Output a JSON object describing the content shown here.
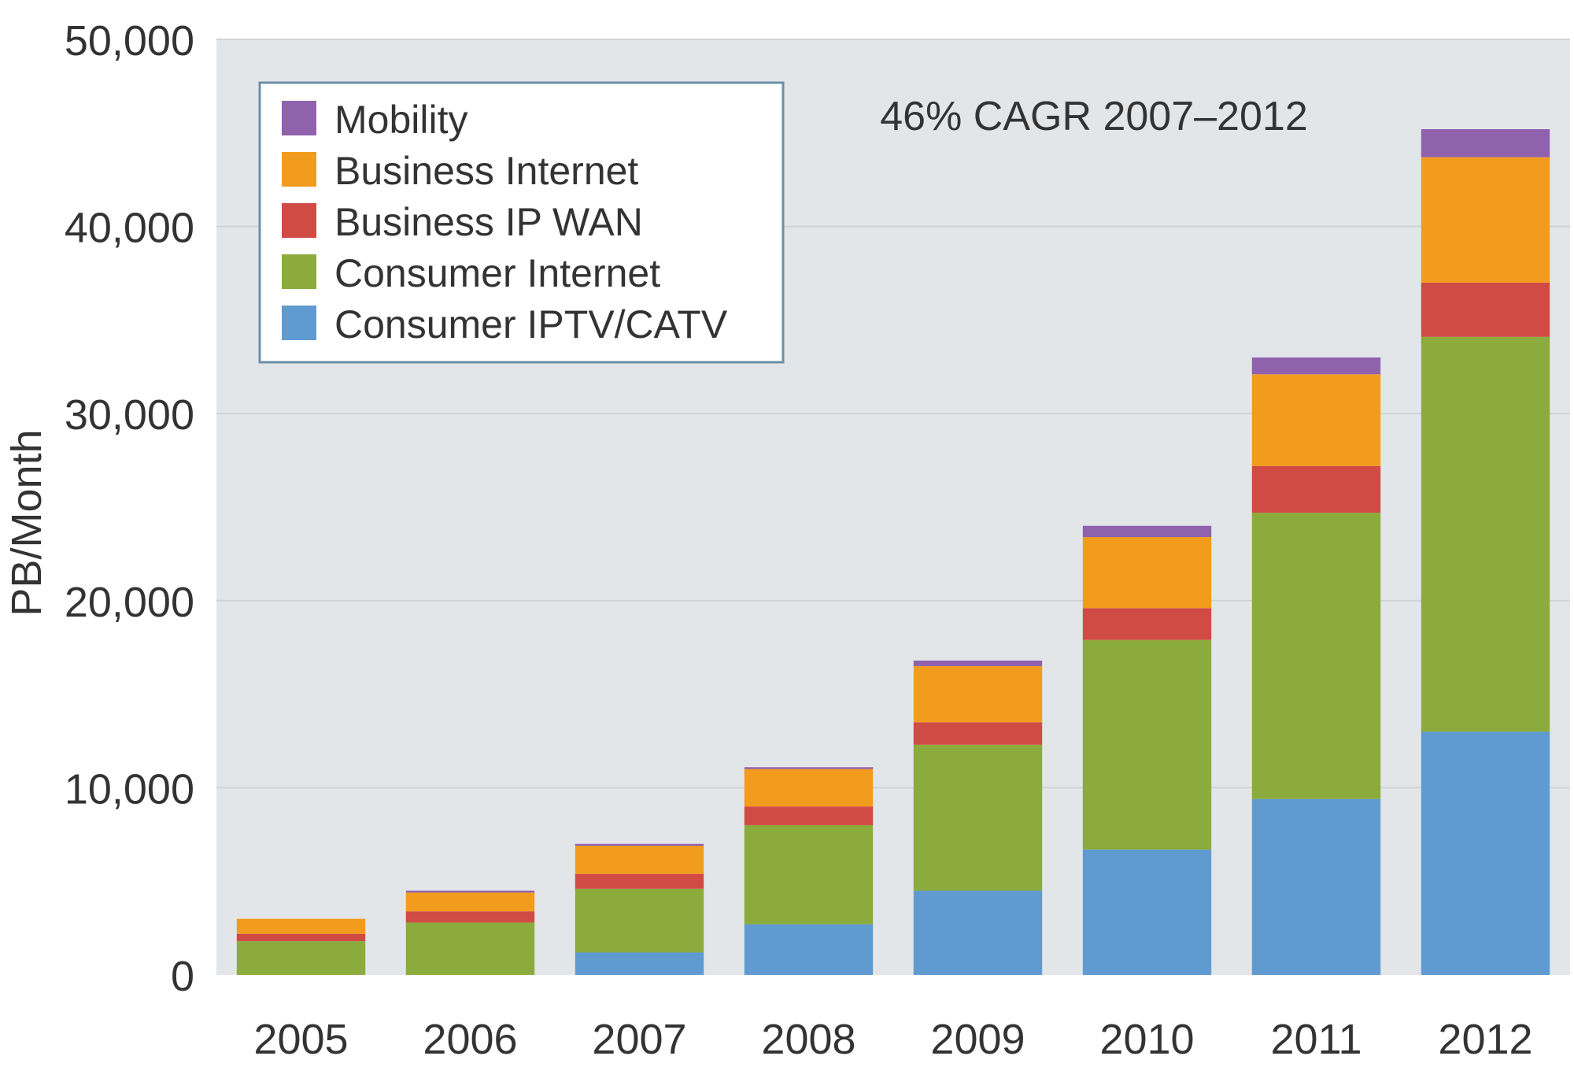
{
  "chart_data": {
    "type": "bar",
    "stacked": true,
    "title": "",
    "xlabel": "",
    "ylabel": "PB/Month",
    "ylim": [
      0,
      50000
    ],
    "yticks": [
      0,
      10000,
      20000,
      30000,
      40000,
      50000
    ],
    "ytick_labels": [
      "0",
      "10,000",
      "20,000",
      "30,000",
      "40,000",
      "50,000"
    ],
    "categories": [
      "2005",
      "2006",
      "2007",
      "2008",
      "2009",
      "2010",
      "2011",
      "2012"
    ],
    "annotation": "46% CAGR 2007–2012",
    "grid": true,
    "legend_position": "top-left",
    "series": [
      {
        "name": "Consumer IPTV/CATV",
        "color": "#5f9bd1",
        "values": [
          0,
          0,
          1200,
          2700,
          4500,
          6700,
          9400,
          13000
        ]
      },
      {
        "name": "Consumer Internet",
        "color": "#8bab3d",
        "values": [
          1800,
          2800,
          3400,
          5300,
          7800,
          11200,
          15300,
          21100
        ]
      },
      {
        "name": "Business IP WAN",
        "color": "#d14b45",
        "values": [
          400,
          600,
          800,
          1000,
          1200,
          1700,
          2500,
          2900
        ]
      },
      {
        "name": "Business Internet",
        "color": "#f29c1d",
        "values": [
          800,
          1000,
          1500,
          2000,
          3000,
          3800,
          4900,
          6700
        ]
      },
      {
        "name": "Mobility",
        "color": "#9062ae",
        "values": [
          0,
          100,
          100,
          100,
          300,
          600,
          900,
          1500
        ]
      }
    ],
    "legend_order": [
      "Mobility",
      "Business Internet",
      "Business IP WAN",
      "Consumer Internet",
      "Consumer IPTV/CATV"
    ],
    "colors": {
      "plot_background": "#e3e6e9",
      "gridline": "#cfd3d6",
      "text": "#333333"
    }
  }
}
